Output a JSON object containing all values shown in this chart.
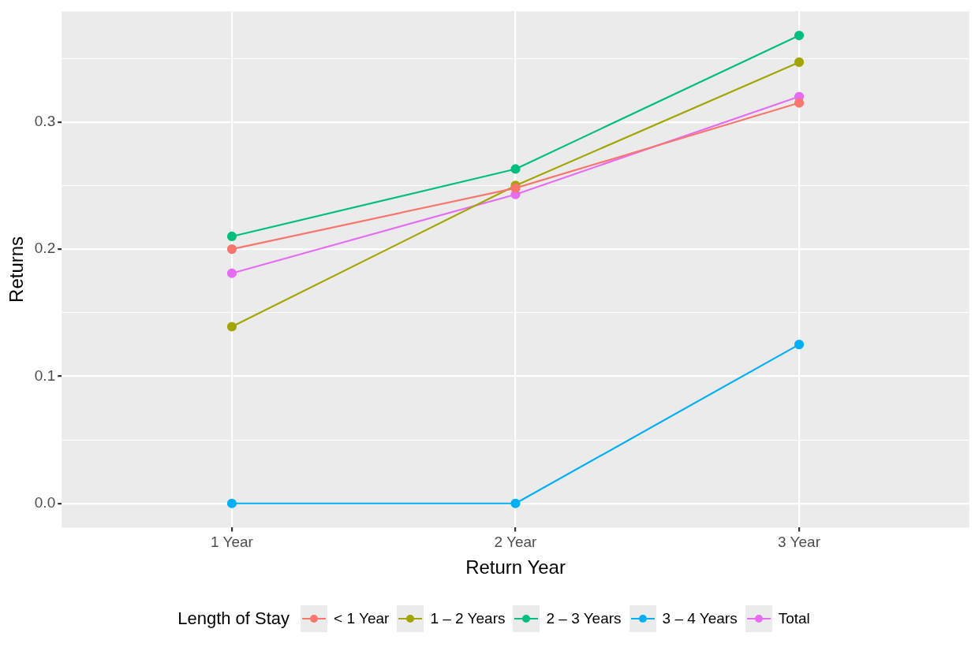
{
  "chart_data": {
    "type": "line",
    "xlabel": "Return Year",
    "ylabel": "Returns",
    "legend_title": "Length of Stay",
    "categories": [
      "1 Year",
      "2 Year",
      "3 Year"
    ],
    "ylim": [
      -0.019,
      0.387
    ],
    "yticks": [
      {
        "value": 0,
        "label": "0.0"
      },
      {
        "value": 0.05,
        "label": null
      },
      0.1,
      {
        "value": 0.15,
        "label": null
      },
      0.2,
      {
        "value": 0.25,
        "label": null
      },
      0.3,
      {
        "value": 0.35,
        "label": null
      }
    ],
    "grid": true,
    "legend": "bottom",
    "marker": "circle",
    "line_style": "solid",
    "series": [
      {
        "name": "< 1 Year",
        "color": "#f8766d",
        "values": [
          0.2,
          0.248,
          0.315
        ]
      },
      {
        "name": "1 – 2 Years",
        "color": "#a3a500",
        "values": [
          0.139,
          0.25,
          0.347
        ]
      },
      {
        "name": "2 – 3 Years",
        "color": "#00bf7d",
        "values": [
          0.21,
          0.263,
          0.368
        ]
      },
      {
        "name": "3 – 4 Years",
        "color": "#00b0f6",
        "values": [
          0,
          0,
          0.125
        ]
      },
      {
        "name": "Total",
        "color": "#e76bf3",
        "values": [
          0.181,
          0.243,
          0.32
        ]
      }
    ]
  }
}
